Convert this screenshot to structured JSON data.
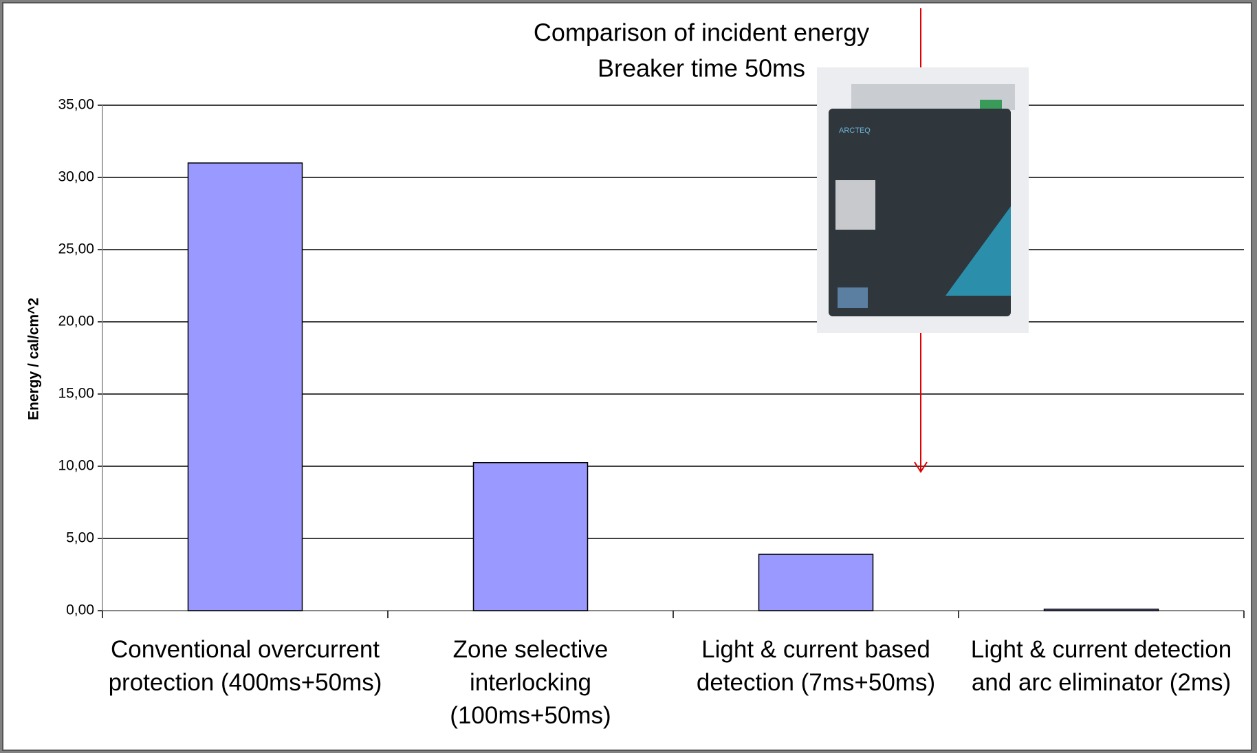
{
  "chart_data": {
    "type": "bar",
    "title": "Comparison of incident energy",
    "subtitle": "Breaker time 50ms",
    "y_label": "Energy / cal/cm^2",
    "categories": [
      "Conventional overcurrent protection (400ms+50ms)",
      "Zone selective interlocking (100ms+50ms)",
      "Light & current based detection (7ms+50ms)",
      "Light & current detection and arc eliminator (2ms)"
    ],
    "values": [
      31,
      10.25,
      3.9,
      0.1
    ],
    "color": "#9999ff",
    "ylim": [
      0,
      35
    ],
    "yticks": [
      {
        "value": 0,
        "label": "0,00"
      },
      {
        "value": 5,
        "label": "5,00"
      },
      {
        "value": 10,
        "label": "10,00"
      },
      {
        "value": 15,
        "label": "15,00"
      },
      {
        "value": 20,
        "label": "20,00"
      },
      {
        "value": 25,
        "label": "25,00"
      },
      {
        "value": 30,
        "label": "30,00"
      },
      {
        "value": 35,
        "label": "35,00"
      }
    ],
    "grid": true,
    "device_label": "ARCTEQ"
  }
}
